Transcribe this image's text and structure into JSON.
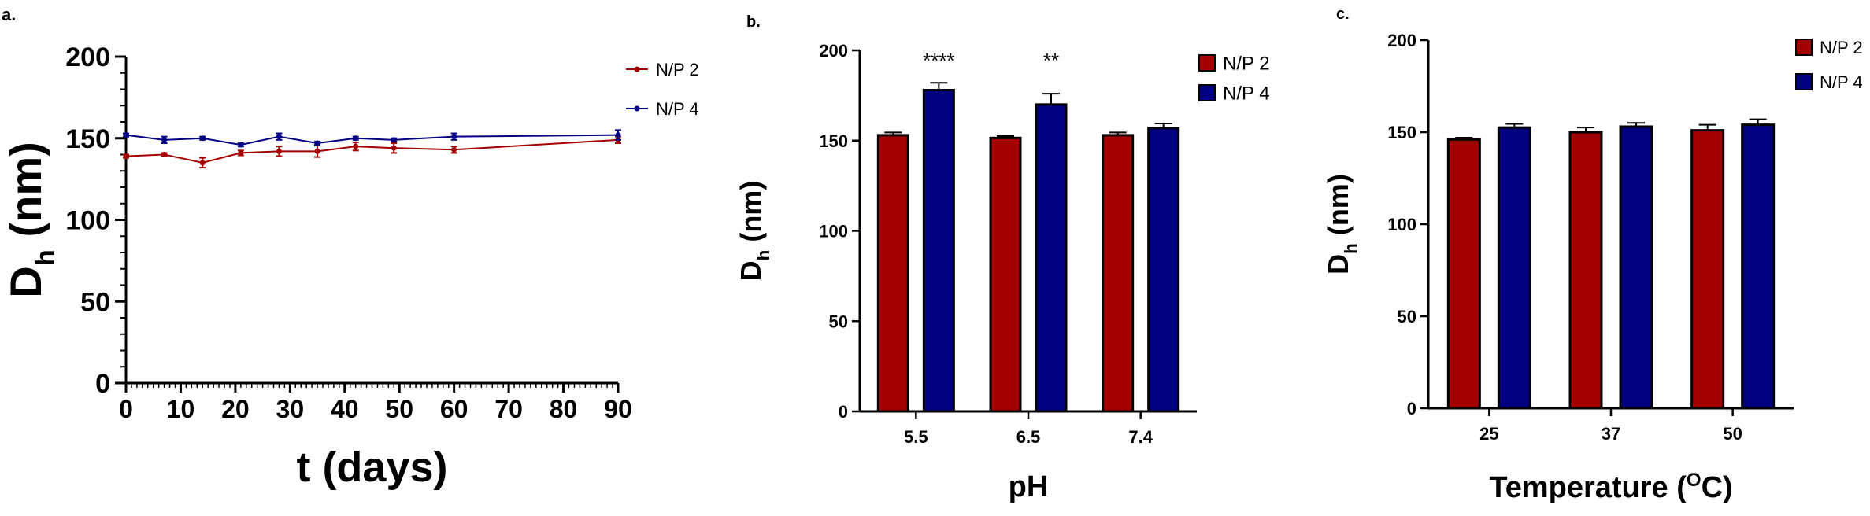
{
  "colors": {
    "np2": "#a30000",
    "np4": "#000080",
    "axis": "#000000"
  },
  "chart_data": [
    {
      "panel": "a.",
      "type": "line",
      "ylabel_main": "D",
      "ylabel_sub": "h",
      "ylabel_rest": " (nm)",
      "xlabel": "t (days)",
      "xlim": [
        0,
        90
      ],
      "ylim": [
        0,
        200
      ],
      "x_ticks": [
        "0",
        "10",
        "20",
        "30",
        "40",
        "50",
        "60",
        "70",
        "80",
        "90"
      ],
      "y_ticks": [
        "0",
        "50",
        "100",
        "150",
        "200"
      ],
      "series": [
        {
          "name": "N/P 2",
          "color": "#a30000",
          "x": [
            0,
            7,
            14,
            21,
            28,
            35,
            42,
            49,
            60,
            90
          ],
          "y": [
            139,
            140,
            135,
            141,
            142,
            142,
            145,
            144,
            143,
            149
          ],
          "err": [
            1,
            1,
            3,
            1.5,
            3,
            3.5,
            2.5,
            3,
            2,
            2
          ]
        },
        {
          "name": "N/P 4",
          "color": "#000080",
          "x": [
            0,
            7,
            14,
            21,
            28,
            35,
            42,
            49,
            60,
            90
          ],
          "y": [
            152,
            149,
            150,
            146,
            151,
            147,
            150,
            149,
            151,
            152
          ],
          "err": [
            1,
            2,
            1,
            1,
            2,
            1,
            1,
            1,
            2,
            3
          ]
        }
      ]
    },
    {
      "panel": "b.",
      "type": "bar",
      "ylabel_main": "D",
      "ylabel_sub": "h",
      "ylabel_rest": " (nm)",
      "xlabel": "pH",
      "categories": [
        "5.5",
        "6.5",
        "7.4"
      ],
      "ylim": [
        0,
        200
      ],
      "y_ticks": [
        "0",
        "50",
        "100",
        "150",
        "200"
      ],
      "annotations": [
        "****",
        "**",
        ""
      ],
      "series": [
        {
          "name": "N/P 2",
          "color": "#a30000",
          "values": [
            153,
            151.5,
            153
          ],
          "err": [
            1.5,
            1,
            1.5
          ]
        },
        {
          "name": "N/P 4",
          "color": "#000080",
          "values": [
            178,
            170,
            157
          ],
          "err": [
            4,
            6,
            2.5
          ]
        }
      ]
    },
    {
      "panel": "c.",
      "type": "bar",
      "ylabel_main": "D",
      "ylabel_sub": "h",
      "ylabel_rest": " (nm)",
      "xlabel_main": "Temperature (",
      "xlabel_sup": "O",
      "xlabel_end": "C)",
      "categories": [
        "25",
        "37",
        "50"
      ],
      "ylim": [
        0,
        200
      ],
      "y_ticks": [
        "0",
        "50",
        "100",
        "150",
        "200"
      ],
      "series": [
        {
          "name": "N/P 2",
          "color": "#a30000",
          "values": [
            146,
            150,
            151
          ],
          "err": [
            1,
            2.5,
            3
          ]
        },
        {
          "name": "N/P 4",
          "color": "#000080",
          "values": [
            152.5,
            153,
            154
          ],
          "err": [
            2,
            2,
            3
          ]
        }
      ]
    }
  ]
}
